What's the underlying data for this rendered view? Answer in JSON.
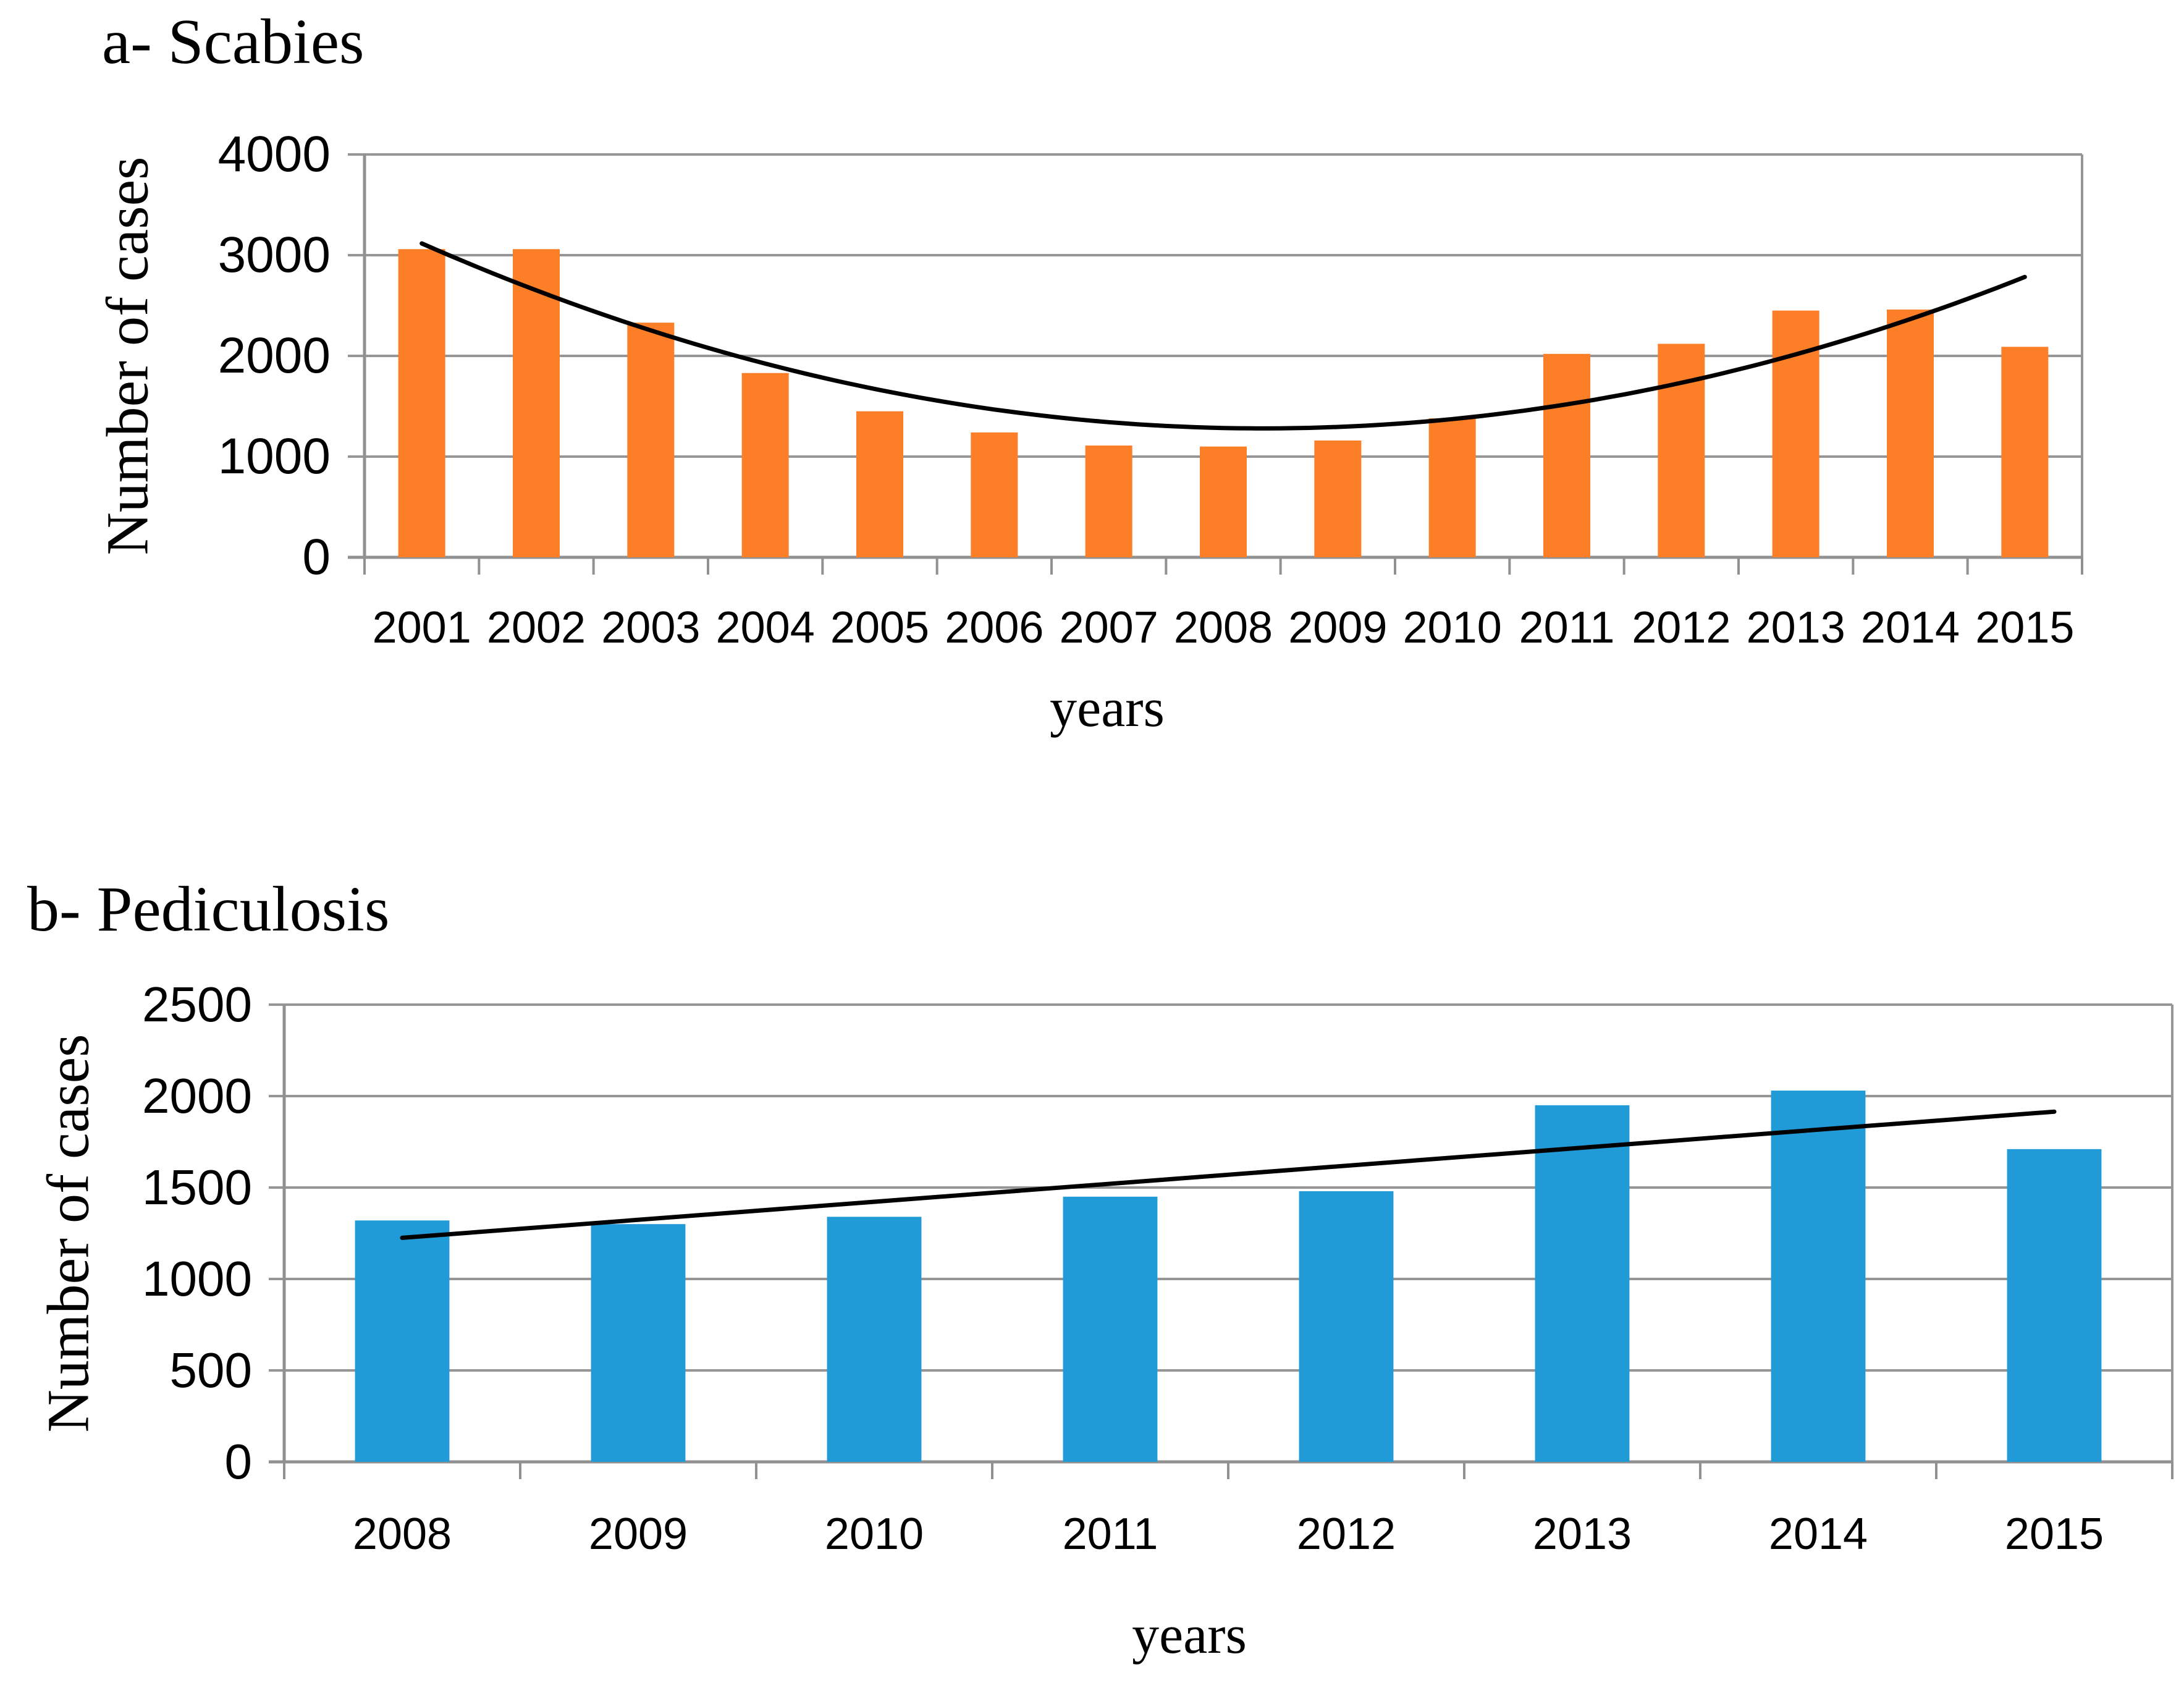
{
  "colors": {
    "background": "#FFFFFF",
    "gridline": "#969696",
    "axis": "#919191",
    "trendline": "#000000",
    "scabies_bar": "#FC7E27",
    "pediculosis_bar": "#209BD7",
    "text": "#000000"
  },
  "charts": [
    {
      "id": "scabies",
      "title": "a- Scabies",
      "ylabel": "Number of cases",
      "xlabel": "years",
      "chart_data": {
        "type": "bar",
        "categories": [
          "2001",
          "2002",
          "2003",
          "2004",
          "2005",
          "2006",
          "2007",
          "2008",
          "2009",
          "2010",
          "2011",
          "2012",
          "2013",
          "2014",
          "2015"
        ],
        "values": [
          3060,
          3060,
          2330,
          1830,
          1450,
          1240,
          1110,
          1100,
          1160,
          1380,
          2020,
          2120,
          2450,
          2460,
          2090
        ],
        "title": "a- Scabies",
        "xlabel": "years",
        "ylabel": "Number of cases",
        "ylim": [
          0,
          4000
        ],
        "yticks": [
          4000,
          3000,
          2000,
          1000,
          0
        ],
        "grid": "horizontal",
        "legend": "none",
        "trendline": {
          "kind": "poly2",
          "a": 34,
          "tmin": 7.35,
          "c": 1280,
          "t_start": 0,
          "t_end": 14
        }
      }
    },
    {
      "id": "pediculosis",
      "title": "b-  Pediculosis",
      "ylabel": "Number of cases",
      "xlabel": "years",
      "chart_data": {
        "type": "bar",
        "categories": [
          "2008",
          "2009",
          "2010",
          "2011",
          "2012",
          "2013",
          "2014",
          "2015"
        ],
        "values": [
          1320,
          1300,
          1340,
          1450,
          1480,
          1950,
          2030,
          1710
        ],
        "title": "b-  Pediculosis",
        "xlabel": "years",
        "ylabel": "Number of cases",
        "ylim": [
          0,
          2500
        ],
        "yticks": [
          2500,
          2000,
          1500,
          1000,
          500,
          0
        ],
        "grid": "horizontal",
        "legend": "none",
        "trendline": {
          "kind": "linear",
          "start": 1225,
          "end": 1915
        }
      }
    }
  ]
}
